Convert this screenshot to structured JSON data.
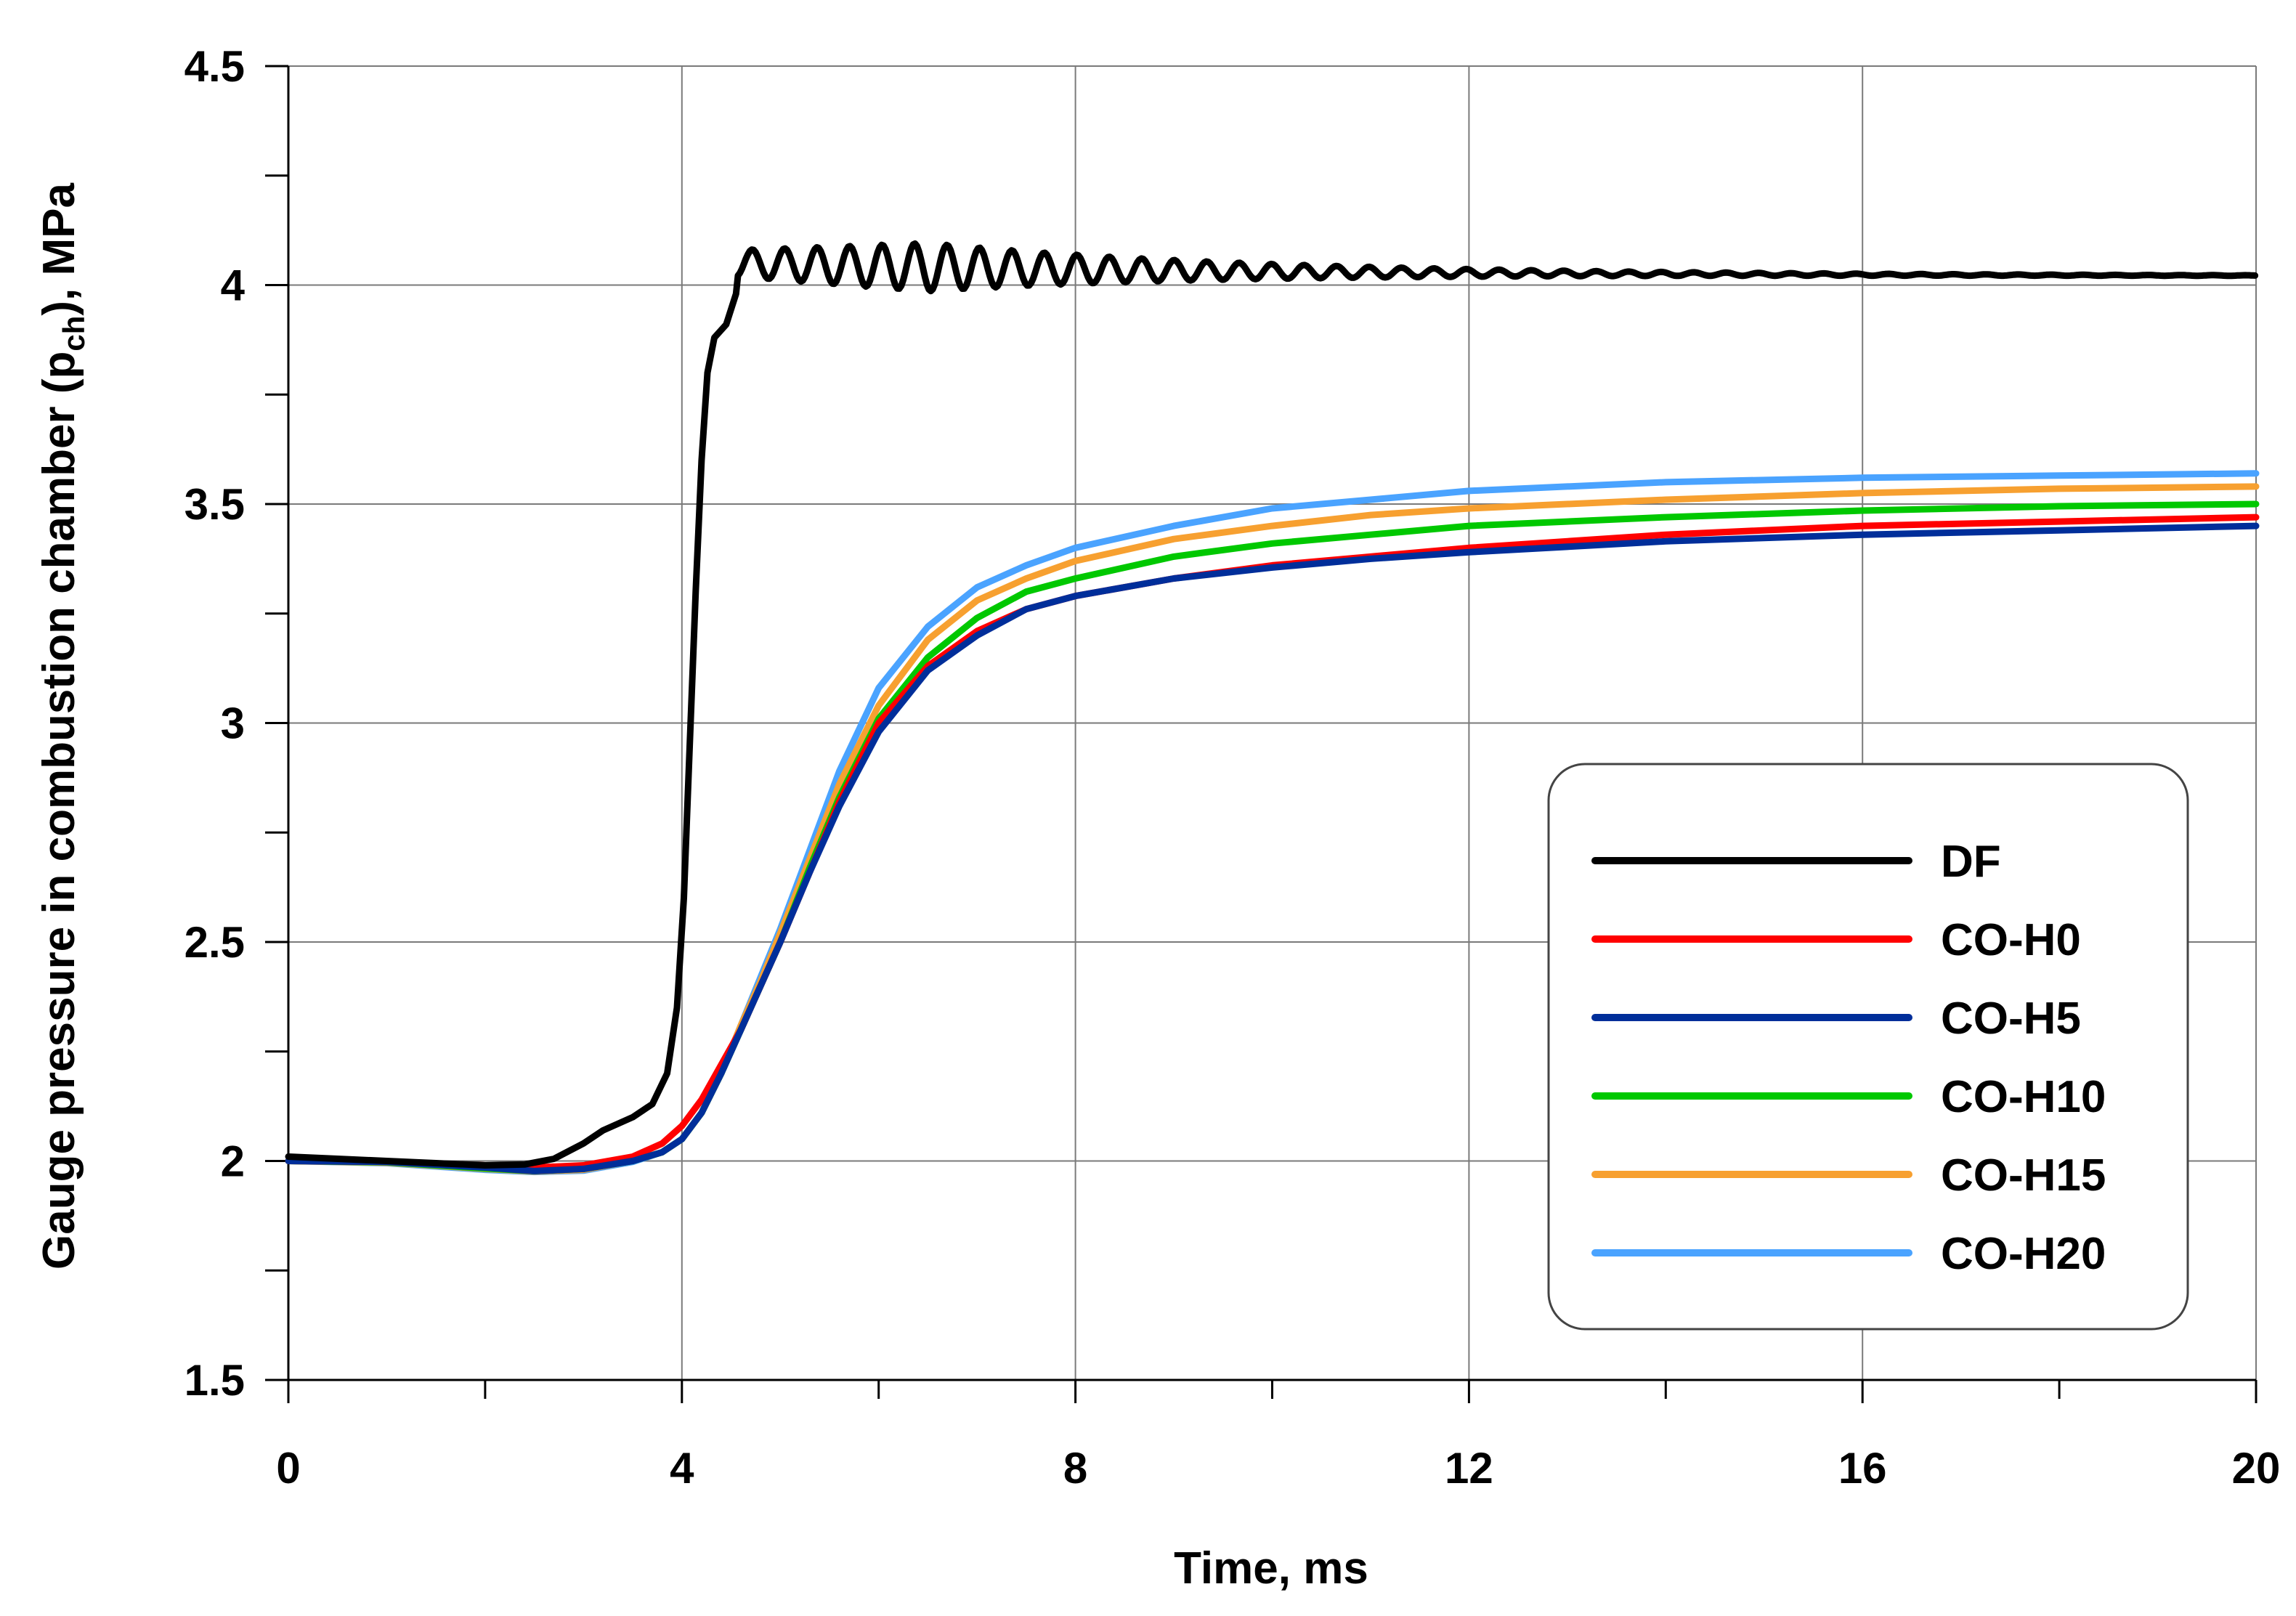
{
  "chart_data": {
    "type": "line",
    "title": "",
    "xlabel": "Time, ms",
    "ylabel": {
      "main": "Gauge pressure in combustion chamber (p",
      "sub": "ch",
      "end": "), MPa"
    },
    "xlim": [
      0,
      20
    ],
    "ylim": [
      1.5,
      4.5
    ],
    "x_ticks": [
      0,
      4,
      8,
      12,
      16,
      20
    ],
    "x_tick_labels": [
      "0",
      "4",
      "8",
      "12",
      "16",
      "20"
    ],
    "x_minor_step": 2,
    "y_ticks": [
      1.5,
      2,
      2.5,
      3,
      3.5,
      4,
      4.5
    ],
    "y_tick_labels": [
      "1.5",
      "2",
      "2.5",
      "3",
      "3.5",
      "4",
      "4.5"
    ],
    "y_minor_step": 0.25,
    "grid": true,
    "legend_position": "bottom-right",
    "series": [
      {
        "name": "DF",
        "color": "#000000",
        "points": [
          [
            0,
            2.01
          ],
          [
            0.5,
            2.005
          ],
          [
            1,
            2.0
          ],
          [
            1.5,
            1.995
          ],
          [
            2,
            1.99
          ],
          [
            2.4,
            1.992
          ],
          [
            2.7,
            2.005
          ],
          [
            3,
            2.04
          ],
          [
            3.2,
            2.07
          ],
          [
            3.5,
            2.1
          ],
          [
            3.7,
            2.13
          ],
          [
            3.85,
            2.2
          ],
          [
            3.95,
            2.35
          ],
          [
            4.02,
            2.6
          ],
          [
            4.08,
            2.95
          ],
          [
            4.14,
            3.3
          ],
          [
            4.2,
            3.6
          ],
          [
            4.26,
            3.8
          ],
          [
            4.33,
            3.88
          ],
          [
            4.45,
            3.91
          ],
          [
            4.55,
            3.98
          ]
        ],
        "oscillation": {
          "start": 4.55,
          "period": 0.33,
          "base_start": 4.05,
          "base_end": 4.02,
          "decay": 3.0,
          "amp_start": 0.03,
          "amp_peak": 0.055,
          "grow_end": 6.5,
          "end": 20
        }
      },
      {
        "name": "CO-H0",
        "color": "#ff0000",
        "points": [
          [
            0,
            2.0
          ],
          [
            1,
            1.998
          ],
          [
            2,
            1.99
          ],
          [
            2.5,
            1.985
          ],
          [
            3,
            1.99
          ],
          [
            3.5,
            2.01
          ],
          [
            3.8,
            2.04
          ],
          [
            4,
            2.08
          ],
          [
            4.2,
            2.14
          ],
          [
            4.4,
            2.22
          ],
          [
            4.6,
            2.3
          ],
          [
            4.8,
            2.4
          ],
          [
            5,
            2.5
          ],
          [
            5.3,
            2.66
          ],
          [
            5.6,
            2.82
          ],
          [
            6,
            3.0
          ],
          [
            6.5,
            3.13
          ],
          [
            7,
            3.21
          ],
          [
            7.5,
            3.26
          ],
          [
            8,
            3.29
          ],
          [
            9,
            3.33
          ],
          [
            10,
            3.36
          ],
          [
            11,
            3.38
          ],
          [
            12,
            3.4
          ],
          [
            14,
            3.43
          ],
          [
            16,
            3.45
          ],
          [
            18,
            3.46
          ],
          [
            20,
            3.47
          ]
        ]
      },
      {
        "name": "CO-H5",
        "color": "#002e9a",
        "points": [
          [
            0,
            2.0
          ],
          [
            1,
            1.998
          ],
          [
            2,
            1.985
          ],
          [
            2.5,
            1.977
          ],
          [
            3,
            1.982
          ],
          [
            3.5,
            2.0
          ],
          [
            3.8,
            2.02
          ],
          [
            4,
            2.05
          ],
          [
            4.2,
            2.11
          ],
          [
            4.4,
            2.2
          ],
          [
            4.6,
            2.3
          ],
          [
            4.8,
            2.4
          ],
          [
            5,
            2.5
          ],
          [
            5.3,
            2.66
          ],
          [
            5.6,
            2.81
          ],
          [
            6,
            2.98
          ],
          [
            6.5,
            3.12
          ],
          [
            7,
            3.2
          ],
          [
            7.5,
            3.26
          ],
          [
            8,
            3.29
          ],
          [
            9,
            3.33
          ],
          [
            10,
            3.355
          ],
          [
            11,
            3.375
          ],
          [
            12,
            3.39
          ],
          [
            14,
            3.415
          ],
          [
            16,
            3.43
          ],
          [
            18,
            3.44
          ],
          [
            20,
            3.45
          ]
        ]
      },
      {
        "name": "CO-H10",
        "color": "#00c800",
        "points": [
          [
            0,
            2.0
          ],
          [
            1,
            1.997
          ],
          [
            2,
            1.983
          ],
          [
            2.5,
            1.977
          ],
          [
            3,
            1.982
          ],
          [
            3.5,
            2.0
          ],
          [
            3.8,
            2.02
          ],
          [
            4,
            2.05
          ],
          [
            4.2,
            2.11
          ],
          [
            4.4,
            2.2
          ],
          [
            4.6,
            2.3
          ],
          [
            4.8,
            2.4
          ],
          [
            5,
            2.5
          ],
          [
            5.3,
            2.67
          ],
          [
            5.6,
            2.83
          ],
          [
            6,
            3.01
          ],
          [
            6.5,
            3.15
          ],
          [
            7,
            3.24
          ],
          [
            7.5,
            3.3
          ],
          [
            8,
            3.33
          ],
          [
            9,
            3.38
          ],
          [
            10,
            3.41
          ],
          [
            11,
            3.43
          ],
          [
            12,
            3.45
          ],
          [
            14,
            3.47
          ],
          [
            16,
            3.485
          ],
          [
            18,
            3.495
          ],
          [
            20,
            3.5
          ]
        ]
      },
      {
        "name": "CO-H15",
        "color": "#f7a030",
        "points": [
          [
            0,
            2.0
          ],
          [
            1,
            1.996
          ],
          [
            2,
            1.982
          ],
          [
            2.5,
            1.976
          ],
          [
            3,
            1.98
          ],
          [
            3.5,
            2.0
          ],
          [
            3.8,
            2.02
          ],
          [
            4,
            2.05
          ],
          [
            4.2,
            2.11
          ],
          [
            4.4,
            2.2
          ],
          [
            4.6,
            2.31
          ],
          [
            4.8,
            2.41
          ],
          [
            5,
            2.52
          ],
          [
            5.3,
            2.69
          ],
          [
            5.6,
            2.86
          ],
          [
            6,
            3.04
          ],
          [
            6.5,
            3.19
          ],
          [
            7,
            3.28
          ],
          [
            7.5,
            3.33
          ],
          [
            8,
            3.37
          ],
          [
            9,
            3.42
          ],
          [
            10,
            3.45
          ],
          [
            11,
            3.475
          ],
          [
            12,
            3.49
          ],
          [
            14,
            3.51
          ],
          [
            16,
            3.525
          ],
          [
            18,
            3.535
          ],
          [
            20,
            3.54
          ]
        ]
      },
      {
        "name": "CO-H20",
        "color": "#4aa3ff",
        "points": [
          [
            0,
            2.0
          ],
          [
            1,
            1.995
          ],
          [
            2,
            1.98
          ],
          [
            2.5,
            1.975
          ],
          [
            3,
            1.978
          ],
          [
            3.5,
            1.998
          ],
          [
            3.8,
            2.02
          ],
          [
            4,
            2.05
          ],
          [
            4.2,
            2.11
          ],
          [
            4.4,
            2.2
          ],
          [
            4.6,
            2.31
          ],
          [
            4.8,
            2.42
          ],
          [
            5,
            2.53
          ],
          [
            5.3,
            2.71
          ],
          [
            5.6,
            2.89
          ],
          [
            6,
            3.08
          ],
          [
            6.5,
            3.22
          ],
          [
            7,
            3.31
          ],
          [
            7.5,
            3.36
          ],
          [
            8,
            3.4
          ],
          [
            9,
            3.45
          ],
          [
            10,
            3.49
          ],
          [
            11,
            3.51
          ],
          [
            12,
            3.53
          ],
          [
            14,
            3.55
          ],
          [
            16,
            3.56
          ],
          [
            18,
            3.565
          ],
          [
            20,
            3.57
          ]
        ]
      }
    ]
  }
}
